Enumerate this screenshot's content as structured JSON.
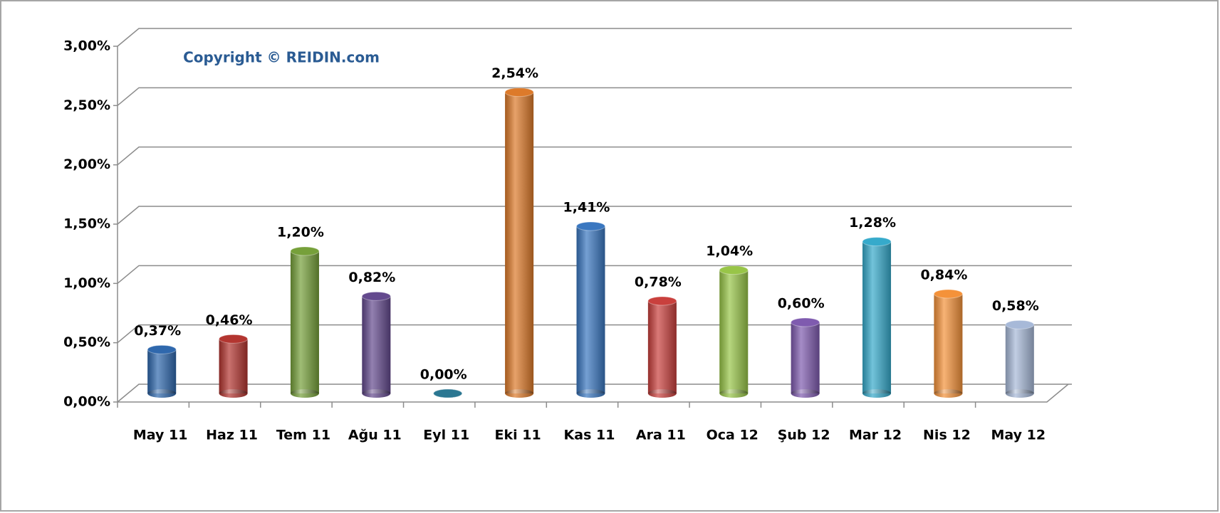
{
  "chart_data": {
    "type": "bar",
    "annotation": "Copyright © REIDIN.com",
    "categories": [
      "May 11",
      "Haz 11",
      "Tem 11",
      "Ağu 11",
      "Eyl 11",
      "Eki 11",
      "Kas 11",
      "Ara 11",
      "Oca 12",
      "Şub 12",
      "Mar 12",
      "Nis 12",
      "May 12"
    ],
    "values": [
      0.37,
      0.46,
      1.2,
      0.82,
      0.0,
      2.54,
      1.41,
      0.78,
      1.04,
      0.6,
      1.28,
      0.84,
      0.58
    ],
    "value_labels": [
      "0,37%",
      "0,46%",
      "1,20%",
      "0,82%",
      "0,00%",
      "2,54%",
      "1,41%",
      "0,78%",
      "1,04%",
      "0,60%",
      "1,28%",
      "0,84%",
      "0,58%"
    ],
    "colors": [
      "#2f68ad",
      "#b33530",
      "#76a03a",
      "#644a8e",
      "#2b7792",
      "#dd7a2a",
      "#3a77c0",
      "#c9403d",
      "#98c548",
      "#7f5baf",
      "#36aacb",
      "#f4923a",
      "#a7b9d8"
    ],
    "ylim": [
      0,
      3
    ],
    "yticks": [
      {
        "value": 0,
        "label": "0,00%"
      },
      {
        "value": 0.5,
        "label": "0,50%"
      },
      {
        "value": 1,
        "label": "1,00%"
      },
      {
        "value": 1.5,
        "label": "1,50%"
      },
      {
        "value": 2,
        "label": "2,00%"
      },
      {
        "value": 2.5,
        "label": "2,50%"
      },
      {
        "value": 3,
        "label": "3,00%"
      }
    ],
    "grid": true
  }
}
